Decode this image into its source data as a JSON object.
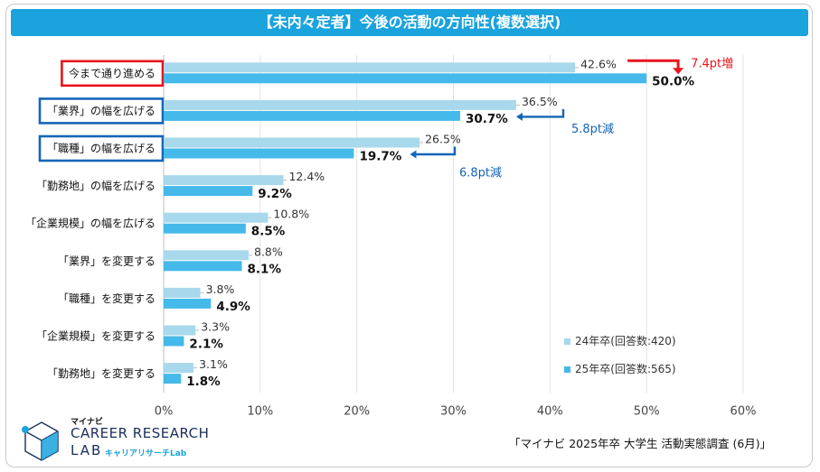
{
  "colors": {
    "title_bg": "#1aa3dc",
    "bar_24": "#a8d8ec",
    "bar_25": "#45b9ea",
    "red": "#e8141b",
    "blue": "#1565b8"
  },
  "title": "【未内々定者】今後の活動の方向性(複数選択)",
  "chart_data": {
    "type": "bar",
    "orientation": "horizontal",
    "categories": [
      "今まで通り進める",
      "「業界」の幅を広げる",
      "「職種」の幅を広げる",
      "「勤務地」の幅を広げる",
      "「企業規模」の幅を広げる",
      "「業界」を変更する",
      "「職種」を変更する",
      "「企業規模」を変更する",
      "「勤務地」を変更する"
    ],
    "series": [
      {
        "name": "24年卒(回答数:420)",
        "values": [
          42.6,
          36.5,
          26.5,
          12.4,
          10.8,
          8.8,
          3.8,
          3.3,
          3.1
        ]
      },
      {
        "name": "25年卒(回答数:565)",
        "values": [
          50.0,
          30.7,
          19.7,
          9.2,
          8.5,
          8.1,
          4.9,
          2.1,
          1.8
        ]
      }
    ],
    "value_labels_24": [
      "42.6%",
      "36.5%",
      "26.5%",
      "12.4%",
      "10.8%",
      "8.8%",
      "3.8%",
      "3.3%",
      "3.1%"
    ],
    "value_labels_25": [
      "50.0%",
      "30.7%",
      "19.7%",
      "9.2%",
      "8.5%",
      "8.1%",
      "4.9%",
      "2.1%",
      "1.8%"
    ],
    "xlim": [
      0,
      60
    ],
    "x_ticks": [
      0,
      10,
      20,
      30,
      40,
      50,
      60
    ],
    "x_tick_labels": [
      "0%",
      "10%",
      "20%",
      "30%",
      "40%",
      "50%",
      "60%"
    ],
    "highlighted_categories": [
      0,
      1,
      2
    ],
    "annotations": [
      {
        "category_index": 0,
        "text": "7.4pt増",
        "direction": "up"
      },
      {
        "category_index": 1,
        "text": "5.8pt減",
        "direction": "down"
      },
      {
        "category_index": 2,
        "text": "6.8pt減",
        "direction": "down"
      }
    ],
    "legend_position": "bottom-right"
  },
  "source": "「マイナビ 2025年卒 大学生 活動実態調査 (6月)」",
  "logo": {
    "brand": "マイナビ",
    "name": "CAREER RESEARCH",
    "lab": "LAB",
    "sub": "キャリアリサーチLab"
  }
}
